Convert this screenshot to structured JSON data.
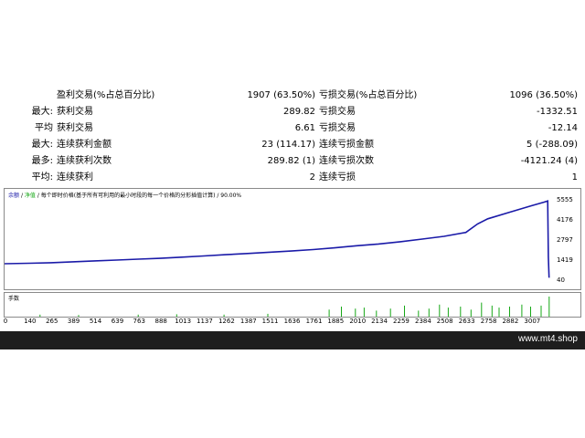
{
  "stats": {
    "rows": [
      {
        "lbl_left": "",
        "lbl_main": "盈利交易(%占总百分比)",
        "val_mid": "1907 (63.50%)",
        "lbl_right": "亏损交易(%占总百分比)",
        "val_right": "1096 (36.50%)"
      },
      {
        "lbl_left": "最大:",
        "lbl_main": "获利交易",
        "val_mid": "289.82",
        "lbl_right": "亏损交易",
        "val_right": "-1332.51"
      },
      {
        "lbl_left": "平均",
        "lbl_main": "获利交易",
        "val_mid": "6.61",
        "lbl_right": "亏损交易",
        "val_right": "-12.14"
      },
      {
        "lbl_left": "最大:",
        "lbl_main": "连续获利金额",
        "val_mid": "23 (114.17)",
        "lbl_right": "连续亏损金额",
        "val_right": "5 (-288.09)"
      },
      {
        "lbl_left": "最多:",
        "lbl_main": "连续获利次数",
        "val_mid": "289.82 (1)",
        "lbl_right": "连续亏损次数",
        "val_right": "-4121.24 (4)"
      },
      {
        "lbl_left": "平均:",
        "lbl_main": "连续获利",
        "val_mid": "2",
        "lbl_right": "连续亏损",
        "val_right": "1"
      }
    ]
  },
  "chart": {
    "legend_balance": "余额",
    "legend_sep1": " / ",
    "legend_equity": "净值",
    "legend_desc": " / 每个即时价格(基于所有可利用的最小时段的每一个价格的分形插值计算) / 90.00%",
    "volume_label": "手数",
    "colors": {
      "balance": "#1a1aa8",
      "equity": "#17a817"
    }
  },
  "chart_data": {
    "type": "line",
    "y_ticks": [
      "5555",
      "4176",
      "2797",
      "1419",
      "40"
    ],
    "x_ticks": [
      "0",
      "140",
      "265",
      "389",
      "514",
      "639",
      "763",
      "888",
      "1013",
      "1137",
      "1262",
      "1387",
      "1511",
      "1636",
      "1761",
      "1885",
      "2010",
      "2134",
      "2259",
      "2384",
      "2508",
      "2633",
      "2758",
      "2882",
      "3007"
    ],
    "ylim": [
      40,
      5555
    ],
    "xlim": [
      0,
      3120
    ],
    "series": [
      {
        "values": [
          [
            0,
            1170
          ],
          [
            140,
            1200
          ],
          [
            265,
            1240
          ],
          [
            389,
            1300
          ],
          [
            514,
            1360
          ],
          [
            639,
            1420
          ],
          [
            763,
            1480
          ],
          [
            888,
            1540
          ],
          [
            1013,
            1620
          ],
          [
            1137,
            1700
          ],
          [
            1262,
            1790
          ],
          [
            1387,
            1870
          ],
          [
            1511,
            1960
          ],
          [
            1636,
            2040
          ],
          [
            1761,
            2140
          ],
          [
            1885,
            2260
          ],
          [
            2010,
            2400
          ],
          [
            2134,
            2520
          ],
          [
            2259,
            2680
          ],
          [
            2384,
            2860
          ],
          [
            2508,
            3050
          ],
          [
            2633,
            3320
          ],
          [
            2700,
            3900
          ],
          [
            2758,
            4250
          ],
          [
            2882,
            4700
          ],
          [
            3007,
            5150
          ],
          [
            3080,
            5400
          ],
          [
            3100,
            5480
          ],
          [
            3104,
            1650
          ],
          [
            3108,
            200
          ]
        ]
      }
    ],
    "volume": [
      [
        200,
        0.1
      ],
      [
        420,
        0.08
      ],
      [
        760,
        0.1
      ],
      [
        980,
        0.12
      ],
      [
        1250,
        0.1
      ],
      [
        1500,
        0.14
      ],
      [
        1850,
        0.35
      ],
      [
        1920,
        0.5
      ],
      [
        2000,
        0.4
      ],
      [
        2050,
        0.45
      ],
      [
        2120,
        0.3
      ],
      [
        2200,
        0.4
      ],
      [
        2280,
        0.55
      ],
      [
        2360,
        0.3
      ],
      [
        2420,
        0.4
      ],
      [
        2480,
        0.6
      ],
      [
        2530,
        0.45
      ],
      [
        2600,
        0.5
      ],
      [
        2660,
        0.35
      ],
      [
        2720,
        0.7
      ],
      [
        2780,
        0.55
      ],
      [
        2820,
        0.45
      ],
      [
        2880,
        0.5
      ],
      [
        2950,
        0.6
      ],
      [
        3000,
        0.5
      ],
      [
        3060,
        0.55
      ],
      [
        3106,
        1.0
      ]
    ]
  },
  "footer": {
    "watermark": "www.mt4.shop"
  }
}
